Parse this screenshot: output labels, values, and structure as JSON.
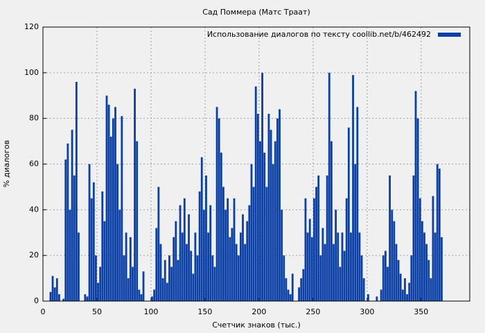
{
  "chart_data": {
    "type": "bar",
    "title": "Сад Поммера (Матс Траат)",
    "xlabel": "Счетчик знаков (тыс.)",
    "ylabel": "% диалогов",
    "color": "#0a3fa6",
    "grid": true,
    "legend": "upper right",
    "xlim": [
      0,
      395
    ],
    "ylim": [
      0,
      120
    ],
    "xticks": [
      0,
      50,
      100,
      150,
      200,
      250,
      300,
      350
    ],
    "yticks": [
      0,
      20,
      40,
      60,
      80,
      100,
      120
    ],
    "series": [
      {
        "name": "Использование диалогов по тексту  coollib.net/b/462492",
        "color": "#0a3fa6",
        "x": [
          1,
          3,
          5,
          7,
          9,
          11,
          13,
          15,
          17,
          19,
          21,
          23,
          25,
          27,
          29,
          31,
          33,
          35,
          37,
          39,
          41,
          43,
          45,
          47,
          49,
          51,
          53,
          55,
          57,
          59,
          61,
          63,
          65,
          67,
          69,
          71,
          73,
          75,
          77,
          79,
          81,
          83,
          85,
          87,
          89,
          91,
          93,
          95,
          97,
          99,
          101,
          103,
          105,
          107,
          109,
          111,
          113,
          115,
          117,
          119,
          121,
          123,
          125,
          127,
          129,
          131,
          133,
          135,
          137,
          139,
          141,
          143,
          145,
          147,
          149,
          151,
          153,
          155,
          157,
          159,
          161,
          163,
          165,
          167,
          169,
          171,
          173,
          175,
          177,
          179,
          181,
          183,
          185,
          187,
          189,
          191,
          193,
          195,
          197,
          199,
          201,
          203,
          205,
          207,
          209,
          211,
          213,
          215,
          217,
          219,
          221,
          223,
          225,
          227,
          229,
          231,
          233,
          235,
          237,
          239,
          241,
          243,
          245,
          247,
          249,
          251,
          253,
          255,
          257,
          259,
          261,
          263,
          265,
          267,
          269,
          271,
          273,
          275,
          277,
          279,
          281,
          283,
          285,
          287,
          289,
          291,
          293,
          295,
          297,
          299,
          301,
          303,
          305,
          307,
          309,
          311,
          313,
          315,
          317,
          319,
          321,
          323,
          325,
          327,
          329,
          331,
          333,
          335,
          337,
          339,
          341,
          343,
          345,
          347,
          349,
          351,
          353,
          355,
          357,
          359,
          361,
          363,
          365,
          367,
          369
        ],
        "values": [
          0,
          0,
          0,
          4,
          11,
          6,
          10,
          3,
          0,
          1,
          62,
          69,
          40,
          75,
          55,
          96,
          30,
          0,
          0,
          3,
          2,
          60,
          45,
          52,
          20,
          8,
          15,
          48,
          35,
          90,
          86,
          72,
          80,
          85,
          60,
          40,
          81,
          20,
          30,
          10,
          28,
          15,
          93,
          70,
          5,
          3,
          13,
          0,
          0,
          0,
          2,
          5,
          32,
          50,
          25,
          10,
          18,
          8,
          20,
          15,
          28,
          35,
          18,
          42,
          30,
          45,
          25,
          38,
          22,
          12,
          30,
          20,
          48,
          63,
          40,
          55,
          30,
          42,
          20,
          15,
          85,
          80,
          65,
          50,
          40,
          45,
          28,
          32,
          45,
          25,
          20,
          30,
          38,
          25,
          35,
          42,
          60,
          50,
          94,
          82,
          70,
          100,
          65,
          50,
          82,
          75,
          60,
          70,
          80,
          84,
          40,
          20,
          10,
          5,
          3,
          12,
          0,
          0,
          6,
          10,
          14,
          45,
          30,
          36,
          28,
          45,
          50,
          55,
          20,
          32,
          25,
          55,
          100,
          70,
          25,
          40,
          30,
          15,
          30,
          22,
          45,
          76,
          30,
          99,
          60,
          85,
          30,
          20,
          10,
          0,
          3,
          0,
          0,
          0,
          2,
          0,
          5,
          20,
          22,
          15,
          55,
          40,
          35,
          25,
          18,
          12,
          5,
          10,
          3,
          8,
          20,
          55,
          92,
          80,
          45,
          35,
          30,
          25,
          18,
          10,
          46,
          30,
          60,
          58,
          28
        ]
      }
    ]
  }
}
